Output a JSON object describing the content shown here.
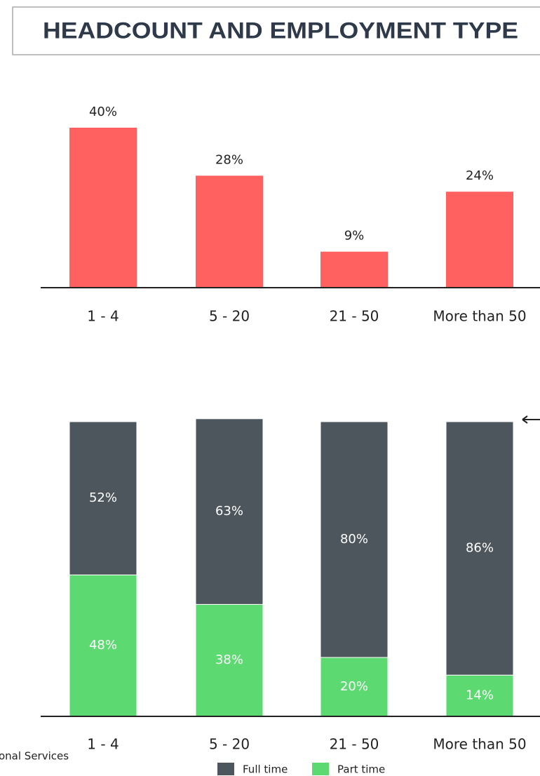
{
  "title": "HEADCOUNT AND EMPLOYMENT TYPE",
  "footnote": "onal Services",
  "chart_data": [
    {
      "type": "bar",
      "categories": [
        "1 - 4",
        "5 - 20",
        "21 - 50",
        "More than 50"
      ],
      "values": [
        40,
        28,
        9,
        24
      ],
      "value_labels": [
        "40%",
        "28%",
        "9%",
        "24%"
      ],
      "color": "#ff6161"
    },
    {
      "type": "stacked_bar",
      "categories": [
        "1 - 4",
        "5 - 20",
        "21 - 50",
        "More than 50"
      ],
      "series": [
        {
          "name": "Part time",
          "color": "#5dd972",
          "values": [
            48,
            38,
            20,
            14
          ],
          "value_labels": [
            "48%",
            "38%",
            "20%",
            "14%"
          ]
        },
        {
          "name": "Full time",
          "color": "#4d565c",
          "values": [
            52,
            63,
            80,
            86
          ],
          "value_labels": [
            "52%",
            "63%",
            "80%",
            "86%"
          ]
        }
      ]
    }
  ]
}
